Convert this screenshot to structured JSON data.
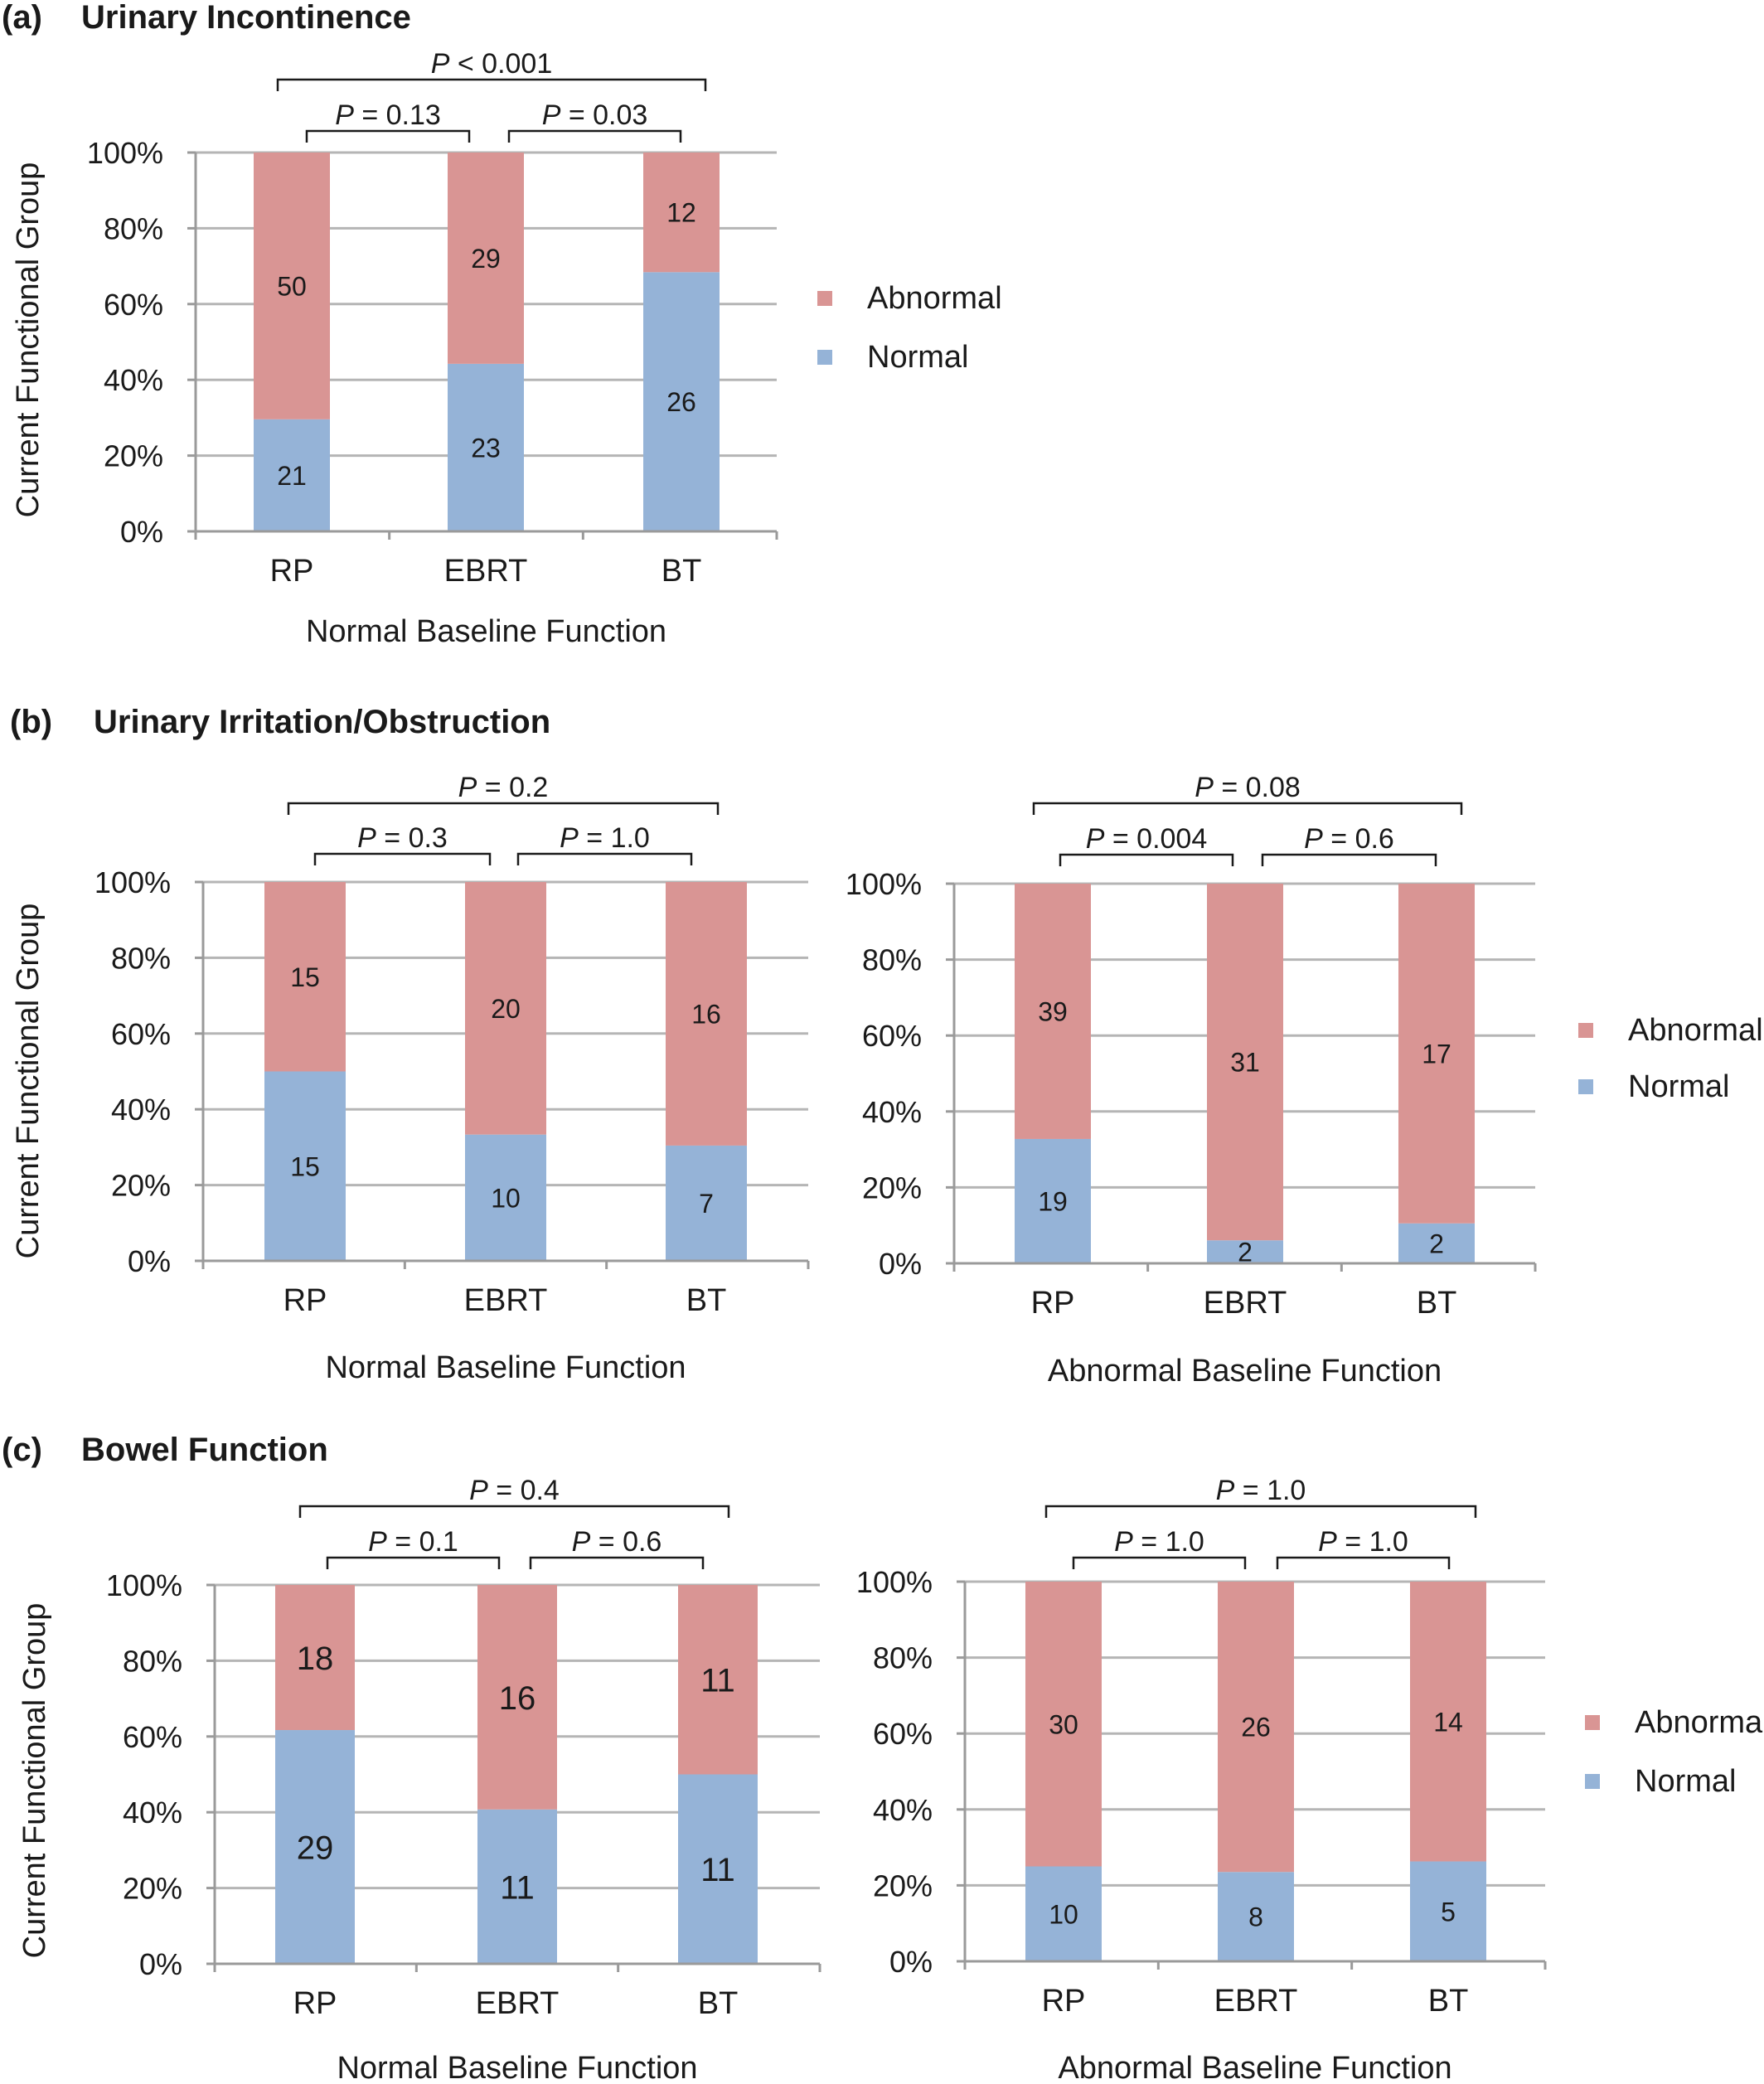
{
  "colors": {
    "abnormal": "#d99594",
    "normal": "#95b3d7"
  },
  "panels": [
    {
      "letter": "(a)",
      "title": "Urinary Incontinence",
      "ylabel": "Current Functional Group"
    },
    {
      "letter": "(b)",
      "title": "Urinary Irritation/Obstruction",
      "ylabel": "Current Functional Group"
    },
    {
      "letter": "(c)",
      "title": "Bowel Function",
      "ylabel": "Current Functional Group"
    }
  ],
  "chart_data": [
    {
      "type": "bar",
      "stacked": true,
      "panel": "(a)",
      "categories": [
        "RP",
        "EBRT",
        "BT"
      ],
      "xlabel": "Normal Baseline Function",
      "ylabel": "Current Functional Group",
      "yticks": [
        "0%",
        "20%",
        "40%",
        "60%",
        "80%",
        "100%"
      ],
      "ylim": [
        0,
        100
      ],
      "grid": true,
      "legend": "right",
      "series": [
        {
          "name": "Normal",
          "values": [
            21,
            23,
            26
          ]
        },
        {
          "name": "Abnormal",
          "values": [
            50,
            29,
            12
          ]
        }
      ],
      "comparisons": [
        {
          "p": "P < 0.001",
          "from": "RP",
          "to": "BT"
        },
        {
          "p": "P = 0.13",
          "from": "RP",
          "to": "EBRT"
        },
        {
          "p": "P = 0.03",
          "from": "EBRT",
          "to": "BT"
        }
      ]
    },
    {
      "type": "bar",
      "stacked": true,
      "panel": "(b)",
      "categories": [
        "RP",
        "EBRT",
        "BT"
      ],
      "xlabel": "Normal Baseline Function",
      "ylabel": "Current Functional Group",
      "yticks": [
        "0%",
        "20%",
        "40%",
        "60%",
        "80%",
        "100%"
      ],
      "ylim": [
        0,
        100
      ],
      "grid": true,
      "legend": "none",
      "series": [
        {
          "name": "Normal",
          "values": [
            15,
            10,
            7
          ]
        },
        {
          "name": "Abnormal",
          "values": [
            15,
            20,
            16
          ]
        }
      ],
      "comparisons": [
        {
          "p": "P = 0.2",
          "from": "RP",
          "to": "BT"
        },
        {
          "p": "P = 0.3",
          "from": "RP",
          "to": "EBRT"
        },
        {
          "p": "P = 1.0",
          "from": "EBRT",
          "to": "BT"
        }
      ]
    },
    {
      "type": "bar",
      "stacked": true,
      "panel": "(b)",
      "categories": [
        "RP",
        "EBRT",
        "BT"
      ],
      "xlabel": "Abnormal Baseline Function",
      "yticks": [
        "0%",
        "20%",
        "40%",
        "60%",
        "80%",
        "100%"
      ],
      "ylim": [
        0,
        100
      ],
      "grid": true,
      "legend": "right",
      "series": [
        {
          "name": "Normal",
          "values": [
            19,
            2,
            2
          ]
        },
        {
          "name": "Abnormal",
          "values": [
            39,
            31,
            17
          ]
        }
      ],
      "comparisons": [
        {
          "p": "P = 0.08",
          "from": "RP",
          "to": "BT"
        },
        {
          "p": "P = 0.004",
          "from": "RP",
          "to": "EBRT"
        },
        {
          "p": "P = 0.6",
          "from": "EBRT",
          "to": "BT"
        }
      ]
    },
    {
      "type": "bar",
      "stacked": true,
      "panel": "(c)",
      "categories": [
        "RP",
        "EBRT",
        "BT"
      ],
      "xlabel": "Normal Baseline Function",
      "ylabel": "Current Functional Group",
      "yticks": [
        "0%",
        "20%",
        "40%",
        "60%",
        "80%",
        "100%"
      ],
      "ylim": [
        0,
        100
      ],
      "grid": true,
      "legend": "none",
      "series": [
        {
          "name": "Normal",
          "values": [
            29,
            11,
            11
          ]
        },
        {
          "name": "Abnormal",
          "values": [
            18,
            16,
            11
          ]
        }
      ],
      "comparisons": [
        {
          "p": "P = 0.4",
          "from": "RP",
          "to": "BT"
        },
        {
          "p": "P = 0.1",
          "from": "RP",
          "to": "EBRT"
        },
        {
          "p": "P = 0.6",
          "from": "EBRT",
          "to": "BT"
        }
      ]
    },
    {
      "type": "bar",
      "stacked": true,
      "panel": "(c)",
      "categories": [
        "RP",
        "EBRT",
        "BT"
      ],
      "xlabel": "Abnormal Baseline Function",
      "yticks": [
        "0%",
        "20%",
        "40%",
        "60%",
        "80%",
        "100%"
      ],
      "ylim": [
        0,
        100
      ],
      "grid": true,
      "legend": "right",
      "series": [
        {
          "name": "Normal",
          "values": [
            10,
            8,
            5
          ]
        },
        {
          "name": "Abnormal",
          "values": [
            30,
            26,
            14
          ]
        }
      ],
      "comparisons": [
        {
          "p": "P = 1.0",
          "from": "RP",
          "to": "BT"
        },
        {
          "p": "P = 1.0",
          "from": "RP",
          "to": "EBRT"
        },
        {
          "p": "P = 1.0",
          "from": "EBRT",
          "to": "BT"
        }
      ]
    }
  ]
}
